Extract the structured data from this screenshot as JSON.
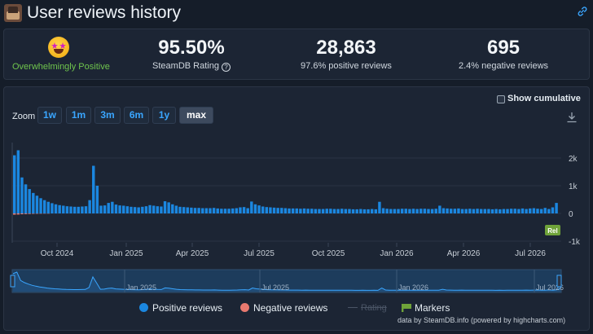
{
  "header": {
    "title": "User reviews history",
    "app_icon": "game-icon",
    "link_icon": "link-icon"
  },
  "summary": {
    "rating_label": "Overwhelmingly Positive",
    "rating_label_color": "#6fc54d",
    "emoji_icon": "star-struck-emoji-icon",
    "score": "95.50%",
    "score_label": "SteamDB Rating",
    "total": "28,863",
    "positive_pct": "97.6% positive reviews",
    "negative": "695",
    "negative_pct": "2.4% negative reviews"
  },
  "controls": {
    "zoom_label": "Zoom",
    "zoom_options": [
      "1w",
      "1m",
      "3m",
      "6m",
      "1y",
      "max"
    ],
    "zoom_selected": "max",
    "cumulative_label": "Show cumulative",
    "cumulative_checked": false,
    "download_icon": "download-icon"
  },
  "legend": {
    "positive": "Positive reviews",
    "negative": "Negative reviews",
    "rating": "Rating",
    "markers": "Markers"
  },
  "credit": "data by SteamDB.info (powered by highcharts.com)",
  "colors": {
    "positive": "#1b87e0",
    "negative": "#e8796f",
    "accent": "#3aa6ff",
    "marker": "#6fa33a"
  },
  "chart_data": {
    "type": "bar",
    "xlabel": "",
    "ylabel": "",
    "y_ticks": [
      "2k",
      "1k",
      "0",
      "-1k"
    ],
    "ylim": [
      -1100,
      2400
    ],
    "x_ticks": [
      "Oct 2024",
      "Jan 2025",
      "Apr 2025",
      "Jul 2025",
      "Oct 2025",
      "Jan 2026",
      "Apr 2026",
      "Jul 2026"
    ],
    "navigator_ticks": [
      "Jan 2025",
      "Jul 2025",
      "Jan 2026",
      "Jul 2026"
    ],
    "marker_label": "Rel",
    "series": [
      {
        "name": "Positive reviews",
        "values": [
          2100,
          2280,
          1300,
          1050,
          880,
          740,
          640,
          550,
          480,
          420,
          370,
          330,
          300,
          280,
          260,
          250,
          240,
          240,
          250,
          260,
          480,
          1720,
          1000,
          280,
          290,
          380,
          420,
          320,
          290,
          280,
          260,
          240,
          230,
          220,
          240,
          260,
          300,
          280,
          260,
          250,
          440,
          400,
          330,
          280,
          240,
          230,
          220,
          210,
          200,
          200,
          190,
          190,
          190,
          200,
          180,
          170,
          170,
          170,
          180,
          190,
          220,
          230,
          190,
          430,
          330,
          290,
          250,
          230,
          220,
          210,
          200,
          200,
          190,
          180,
          180,
          180,
          170,
          180,
          170,
          170,
          160,
          160,
          160,
          170,
          170,
          160,
          160,
          170,
          160,
          160,
          150,
          150,
          160,
          150,
          150,
          160,
          150,
          420,
          190,
          170,
          160,
          160,
          160,
          170,
          170,
          160,
          170,
          160,
          170,
          170,
          160,
          160,
          170,
          280,
          190,
          180,
          170,
          170,
          180,
          160,
          160,
          170,
          160,
          170,
          160,
          160,
          160,
          150,
          160,
          150,
          160,
          160,
          170,
          170,
          160,
          180,
          160,
          180,
          190,
          170,
          160,
          200,
          160,
          220,
          380
        ]
      },
      {
        "name": "Negative reviews",
        "values": [
          -45,
          -40,
          -30,
          -25,
          -20,
          -15,
          -12,
          -10,
          -8,
          -8
        ]
      }
    ]
  }
}
